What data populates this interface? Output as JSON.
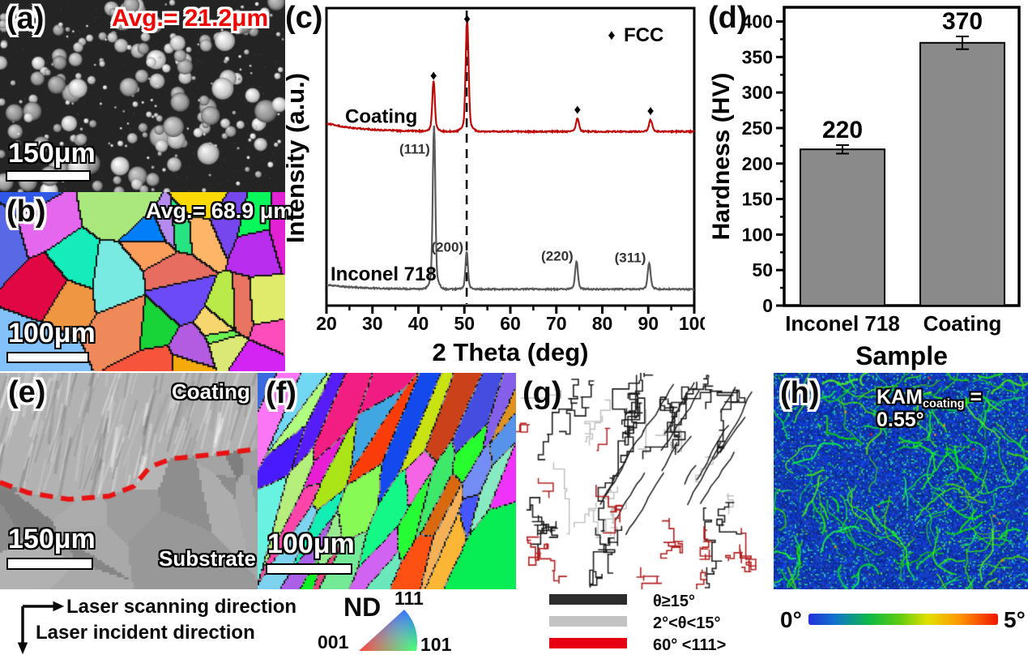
{
  "figure": {
    "panel_a": {
      "label": "(a)",
      "avg": "Avg.= 21.2μm",
      "scalebar": "150μm"
    },
    "panel_b": {
      "label": "(b)",
      "avg": "Avg.= 68.9 μm",
      "scalebar": "100μm"
    },
    "panel_c": {
      "label": "(c)"
    },
    "panel_d": {
      "label": "(d)"
    },
    "panel_e": {
      "label": "(e)",
      "region_top": "Coating",
      "region_bottom": "Substrate",
      "scalebar": "150μm"
    },
    "panel_f": {
      "label": "(f)",
      "scalebar": "100μm"
    },
    "panel_g": {
      "label": "(g)"
    },
    "panel_h": {
      "label": "(h)",
      "kam_prefix": "KAM",
      "kam_sub": "coating",
      "kam_value": " = 0.55°"
    }
  },
  "chart_data": [
    {
      "type": "line",
      "panel": "c",
      "xlabel": "2 Theta (deg)",
      "ylabel": "Intensity (a.u.)",
      "xlim": [
        20,
        100
      ],
      "xticks": [
        20,
        30,
        40,
        50,
        60,
        70,
        80,
        90,
        100
      ],
      "grid": false,
      "legend_marker": "♦",
      "legend": "FCC",
      "dashed_line_x": 50.5,
      "series": [
        {
          "name": "Inconel 718",
          "color": "#5a5a5a",
          "baseline_offset": 0.055,
          "start_drift": 0.015,
          "peaks": [
            {
              "two_theta": 43.4,
              "height": 0.5,
              "w": 0.38,
              "label": "(111)"
            },
            {
              "two_theta": 50.5,
              "height": 0.115,
              "w": 0.36,
              "label": "(200)"
            },
            {
              "two_theta": 74.4,
              "height": 0.085,
              "w": 0.4,
              "label": "(220)"
            },
            {
              "two_theta": 90.2,
              "height": 0.08,
              "w": 0.42,
              "label": "(311)"
            }
          ]
        },
        {
          "name": "Coating",
          "color": "#c00a0a",
          "baseline_offset": 0.585,
          "start_drift": 0.028,
          "peaks": [
            {
              "two_theta": 43.3,
              "height": 0.155,
              "w": 0.38,
              "marker": true
            },
            {
              "two_theta": 50.6,
              "height": 0.345,
              "w": 0.42,
              "marker": true
            },
            {
              "two_theta": 74.6,
              "height": 0.04,
              "w": 0.45,
              "marker": true
            },
            {
              "two_theta": 90.5,
              "height": 0.036,
              "w": 0.45,
              "marker": true
            }
          ]
        }
      ]
    },
    {
      "type": "bar",
      "panel": "d",
      "categories": [
        "Inconel 718",
        "Coating"
      ],
      "values": [
        220,
        370
      ],
      "errors": [
        6,
        9
      ],
      "value_labels": [
        "220",
        "370"
      ],
      "ylabel": "Hardness (HV)",
      "xlabel": "Sample",
      "ylim": [
        0,
        420
      ],
      "yticks": [
        0,
        50,
        100,
        150,
        200,
        250,
        300,
        350,
        400
      ],
      "bar_color": "#8a8a8a"
    }
  ],
  "footer": {
    "laser_scanning": "Laser scanning direction",
    "laser_incident": "Laser incident direction",
    "ipf_title": "ND",
    "ipf_corner_top": "111",
    "ipf_corner_left": "001",
    "ipf_corner_right": "101",
    "boundary_legend": [
      {
        "label": "θ≥15°",
        "color": "#2d2d2d"
      },
      {
        "label": "2°<θ<15°",
        "color": "#c3c3c3"
      },
      {
        "label": "60° <111>",
        "color": "#e60012"
      }
    ],
    "colorbar": {
      "min": "0°",
      "max": "5°"
    }
  }
}
